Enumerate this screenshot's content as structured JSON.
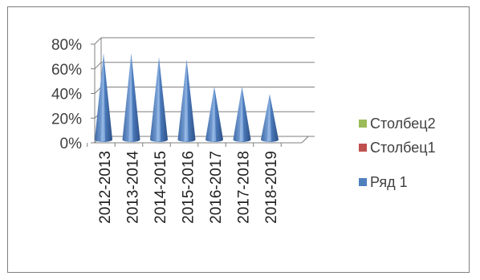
{
  "chart_data": {
    "type": "bar",
    "subtype": "3d-cone",
    "title": "",
    "xlabel": "",
    "ylabel": "",
    "ylim": [
      0,
      80
    ],
    "y_ticks": [
      "0%",
      "20%",
      "40%",
      "60%",
      "80%"
    ],
    "grid": true,
    "legend_position": "right",
    "categories": [
      "2012-2013",
      "2013-2014",
      "2014-2015",
      "2015-2016",
      "2016-2017",
      "2017-2018",
      "2018-2019"
    ],
    "series": [
      {
        "name": "Столбец2",
        "color": "#9bbb59",
        "values": [
          0,
          0,
          0,
          0,
          0,
          0,
          0
        ]
      },
      {
        "name": "Столбец1",
        "color": "#c0504d",
        "values": [
          0,
          0,
          0,
          0,
          0,
          0,
          0
        ]
      },
      {
        "name": "Ряд 1",
        "color": "#4f81bd",
        "values": [
          70,
          70,
          67,
          65,
          43,
          43,
          37
        ]
      }
    ]
  }
}
